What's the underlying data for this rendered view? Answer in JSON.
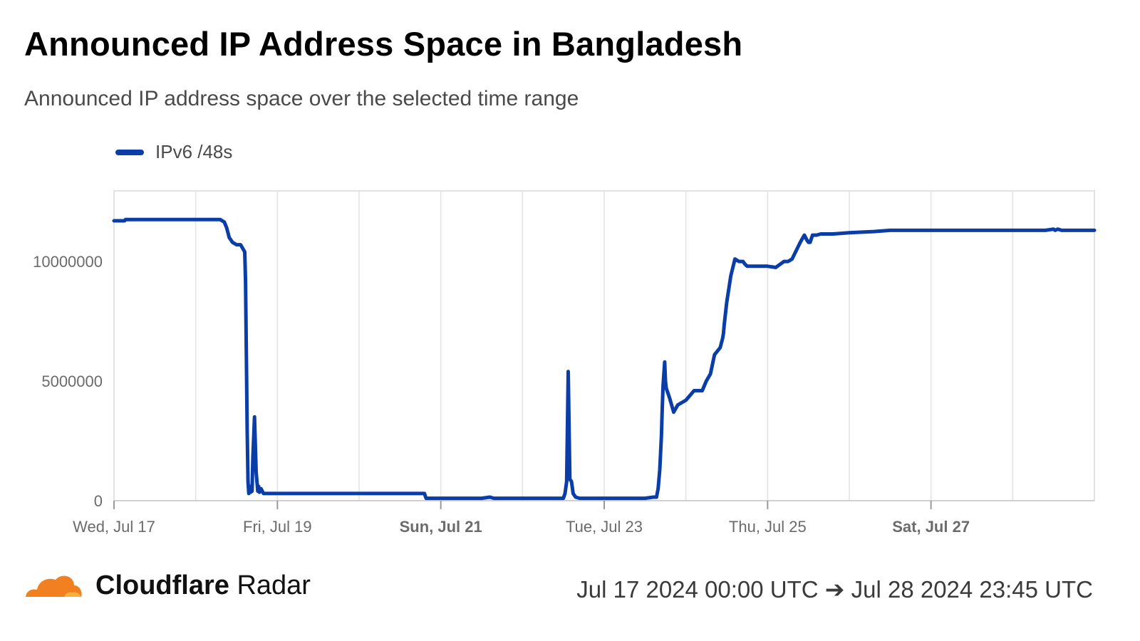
{
  "header": {
    "title": "Announced IP Address Space in Bangladesh",
    "subtitle": "Announced IP address space over the selected time range"
  },
  "footer": {
    "brand_bold": "Cloudflare",
    "brand_light": " Radar",
    "range": "Jul 17 2024 00:00 UTC ➔ Jul 28 2024 23:45 UTC",
    "logo_icon": "cloudflare-cloud-icon"
  },
  "colors": {
    "series": "#0a3ea6",
    "grid": "#e2e2e2",
    "axis_text": "#6b6b6b",
    "logo_orange": "#f38020",
    "logo_light": "#faae40"
  },
  "chart_data": {
    "type": "line",
    "title": "Announced IP Address Space in Bangladesh",
    "subtitle": "Announced IP address space over the selected time range",
    "xlabel": "",
    "ylabel": "",
    "legend_position": "top-left",
    "grid": true,
    "xlim": [
      0,
      12
    ],
    "ylim": [
      0,
      12950000
    ],
    "x_ticks": [
      {
        "x": 0,
        "label": "Wed, Jul 17",
        "bold": false
      },
      {
        "x": 2,
        "label": "Fri, Jul 19",
        "bold": false
      },
      {
        "x": 4,
        "label": "Sun, Jul 21",
        "bold": true
      },
      {
        "x": 6,
        "label": "Tue, Jul 23",
        "bold": false
      },
      {
        "x": 8,
        "label": "Thu, Jul 25",
        "bold": false
      },
      {
        "x": 10,
        "label": "Sat, Jul 27",
        "bold": true
      }
    ],
    "y_ticks": [
      0,
      5000000,
      10000000
    ],
    "y_tick_labels": [
      "0",
      "5000000",
      "10000000"
    ],
    "series": [
      {
        "name": "IPv6 /48s",
        "x": [
          0,
          0.13,
          0.14,
          1.2,
          1.3,
          1.35,
          1.38,
          1.41,
          1.45,
          1.5,
          1.55,
          1.6,
          1.61,
          1.62,
          1.63,
          1.64,
          1.65,
          1.66,
          1.67,
          1.69,
          1.7,
          1.72,
          1.74,
          1.76,
          1.77,
          1.78,
          1.8,
          1.83,
          1.86,
          1.9,
          2.0,
          2.5,
          3.0,
          3.6,
          3.8,
          3.82,
          4.0,
          4.5,
          4.6,
          4.65,
          5.0,
          5.5,
          5.52,
          5.54,
          5.56,
          5.58,
          5.6,
          5.62,
          5.65,
          5.7,
          5.8,
          6.0,
          6.5,
          6.6,
          6.62,
          6.64,
          6.66,
          6.68,
          6.7,
          6.71,
          6.72,
          6.74,
          6.75,
          6.76,
          6.8,
          6.85,
          6.9,
          7.0,
          7.05,
          7.1,
          7.15,
          7.18,
          7.2,
          7.25,
          7.3,
          7.35,
          7.42,
          7.45,
          7.46,
          7.47,
          7.5,
          7.55,
          7.6,
          7.65,
          7.68,
          7.7,
          7.72,
          7.75,
          7.78,
          7.8,
          7.9,
          8.0,
          8.1,
          8.2,
          8.25,
          8.3,
          8.4,
          8.45,
          8.48,
          8.5,
          8.52,
          8.55,
          8.6,
          8.65,
          8.7,
          8.75,
          8.8,
          9.0,
          9.3,
          9.5,
          9.8,
          10.0,
          10.5,
          11.0,
          11.4,
          11.5,
          11.52,
          11.55,
          11.6,
          12.0
        ],
        "values": [
          11700000,
          11700000,
          11750000,
          11750000,
          11750000,
          11650000,
          11400000,
          11000000,
          10800000,
          10700000,
          10700000,
          10400000,
          9200000,
          6000000,
          3000000,
          800000,
          300000,
          600000,
          350000,
          400000,
          1800000,
          3500000,
          1200000,
          400000,
          600000,
          350000,
          500000,
          300000,
          300000,
          300000,
          300000,
          300000,
          300000,
          300000,
          300000,
          100000,
          100000,
          100000,
          150000,
          100000,
          100000,
          100000,
          300000,
          800000,
          5400000,
          900000,
          800000,
          300000,
          150000,
          100000,
          100000,
          100000,
          100000,
          150000,
          150000,
          150000,
          500000,
          1300000,
          2700000,
          3800000,
          4800000,
          5800000,
          5000000,
          4700000,
          4300000,
          3700000,
          4000000,
          4200000,
          4400000,
          4600000,
          4600000,
          4600000,
          4600000,
          5000000,
          5300000,
          6100000,
          6400000,
          6800000,
          7000000,
          7400000,
          8300000,
          9400000,
          10100000,
          10000000,
          10000000,
          10000000,
          9900000,
          9800000,
          9800000,
          9800000,
          9800000,
          9800000,
          9750000,
          10000000,
          10000000,
          10100000,
          10800000,
          11100000,
          10900000,
          10800000,
          10800000,
          11100000,
          11100000,
          11150000,
          11150000,
          11150000,
          11150000,
          11200000,
          11250000,
          11300000,
          11300000,
          11300000,
          11300000,
          11300000,
          11300000,
          11350000,
          11300000,
          11350000,
          11300000,
          11300000
        ]
      }
    ]
  }
}
